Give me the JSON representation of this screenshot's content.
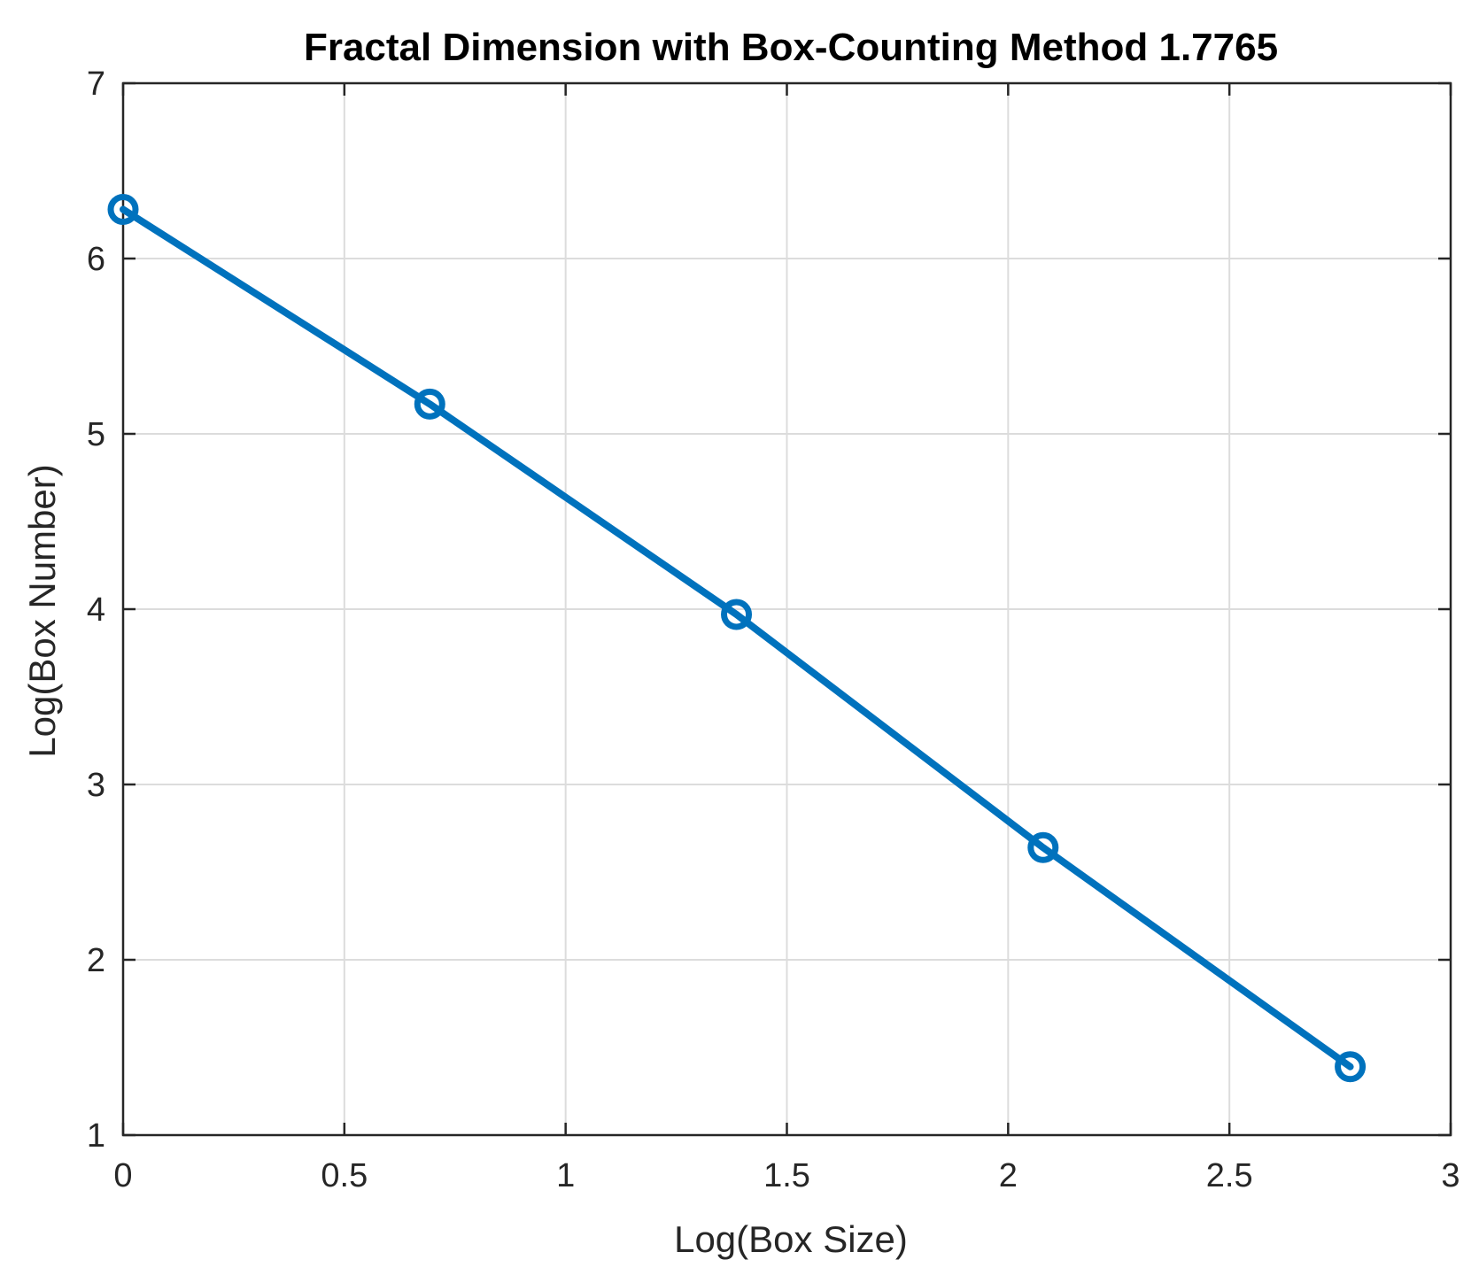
{
  "chart_data": {
    "type": "line",
    "title": "Fractal Dimension with Box-Counting Method 1.7765",
    "xlabel": "Log(Box Size)",
    "ylabel": "Log(Box Number)",
    "xlim": [
      0,
      3
    ],
    "ylim": [
      1,
      7
    ],
    "xticks": [
      0,
      0.5,
      1,
      1.5,
      2,
      2.5,
      3
    ],
    "xtick_labels": [
      "0",
      "0.5",
      "1",
      "1.5",
      "2",
      "2.5",
      "3"
    ],
    "yticks": [
      1,
      2,
      3,
      4,
      5,
      6,
      7
    ],
    "ytick_labels": [
      "1",
      "2",
      "3",
      "4",
      "5",
      "6",
      "7"
    ],
    "grid": true,
    "series": [
      {
        "x": [
          0,
          0.693,
          1.386,
          2.079,
          2.773
        ],
        "y": [
          6.28,
          5.17,
          3.97,
          2.64,
          1.39
        ],
        "marker": "circle",
        "color": "#0072BD"
      }
    ]
  }
}
